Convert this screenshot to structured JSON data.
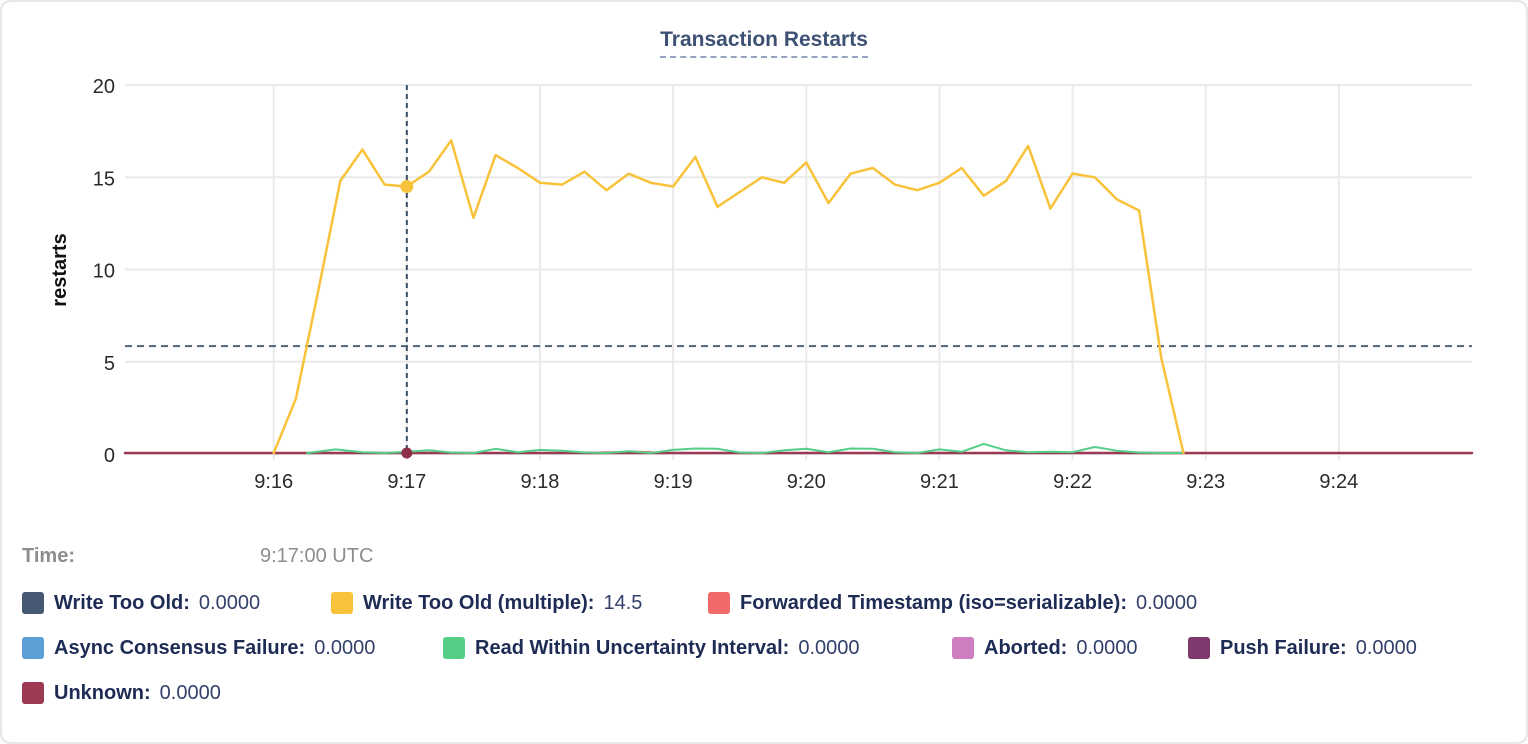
{
  "header": {
    "title": "Transaction Restarts"
  },
  "readout": {
    "label": "Time:",
    "value": "9:17:00 UTC"
  },
  "legend": {
    "rows": [
      [
        {
          "slug": "write-too-old",
          "label": "Write Too Old:",
          "value": "0.0000",
          "color": "#475872"
        },
        {
          "slug": "write-too-old-multiple",
          "label": "Write Too Old (multiple):",
          "value": "14.5",
          "color": "#F8C33A"
        },
        {
          "slug": "forwarded-timestamp",
          "label": "Forwarded Timestamp (iso=serializable):",
          "value": "0.0000",
          "color": "#F16969"
        }
      ],
      [
        {
          "slug": "async-consensus-failure",
          "label": "Async Consensus Failure:",
          "value": "0.0000",
          "color": "#5C9FD6"
        },
        {
          "slug": "read-within-uncertainty-interval",
          "label": "Read Within Uncertainty Interval:",
          "value": "0.0000",
          "color": "#55CE87"
        },
        {
          "slug": "aborted",
          "label": "Aborted:",
          "value": "0.0000",
          "color": "#CE7DC0"
        },
        {
          "slug": "push-failure",
          "label": "Push Failure:",
          "value": "0.0000",
          "color": "#7E396D"
        }
      ],
      [
        {
          "slug": "unknown",
          "label": "Unknown:",
          "value": "0.0000",
          "color": "#9C3A53"
        }
      ]
    ]
  },
  "colors": {
    "gridline": "#EAEAEA",
    "tick_text": "#2B2B2B",
    "axis_title_text": "#111111",
    "crosshair": "#3D5166",
    "crosshair_dot_bottom": "#8D2F48"
  },
  "chart_data": {
    "type": "line",
    "title": "Transaction Restarts",
    "xlabel": "",
    "ylabel": "restarts",
    "ylim": [
      0,
      20
    ],
    "y_ticks": [
      0,
      5,
      10,
      15,
      20
    ],
    "x_ticks": [
      {
        "label": "9:16",
        "t": 960
      },
      {
        "label": "9:17",
        "t": 1020
      },
      {
        "label": "9:18",
        "t": 1080
      },
      {
        "label": "9:19",
        "t": 1140
      },
      {
        "label": "9:20",
        "t": 1200
      },
      {
        "label": "9:21",
        "t": 1260
      },
      {
        "label": "9:22",
        "t": 1320
      },
      {
        "label": "9:23",
        "t": 1380
      },
      {
        "label": "9:24",
        "t": 1440
      }
    ],
    "x_domain_seconds_since_9am": [
      893,
      1500
    ],
    "grid": true,
    "legend_position": "bottom",
    "average_dashed_line_value": 5.85,
    "crosshair": {
      "t": 1020,
      "time_label": "9:17:00 UTC",
      "highlighted_points": [
        {
          "series": "Write Too Old (multiple)",
          "value": 14.5
        },
        {
          "series": "Unknown",
          "value": 0
        }
      ]
    },
    "series": [
      {
        "name": "Write Too Old",
        "color": "#475872",
        "width": 2,
        "points": [
          [
            893,
            0.02
          ],
          [
            1500,
            0.02
          ]
        ]
      },
      {
        "name": "Async Consensus Failure",
        "color": "#5C9FD6",
        "width": 2,
        "points": [
          [
            893,
            0.02
          ],
          [
            1500,
            0.02
          ]
        ]
      },
      {
        "name": "Aborted",
        "color": "#CE7DC0",
        "width": 2,
        "points": [
          [
            893,
            0.02
          ],
          [
            1500,
            0.02
          ]
        ]
      },
      {
        "name": "Push Failure",
        "color": "#7E396D",
        "width": 2,
        "points": [
          [
            893,
            0.02
          ],
          [
            1500,
            0.02
          ]
        ]
      },
      {
        "name": "Forwarded Timestamp (iso=serializable)",
        "color": "#F16969",
        "width": 2,
        "points": [
          [
            893,
            0.02
          ],
          [
            1100,
            0.02
          ],
          [
            1112,
            0.1
          ],
          [
            1122,
            0.13
          ],
          [
            1138,
            0.04
          ],
          [
            1148,
            0.02
          ],
          [
            1500,
            0.02
          ]
        ]
      },
      {
        "name": "Unknown",
        "color": "#9C3A53",
        "width": 2.5,
        "points": [
          [
            893,
            0.03
          ],
          [
            1500,
            0.03
          ]
        ]
      },
      {
        "name": "Read Within Uncertainty Interval",
        "color": "#55CE87",
        "width": 2,
        "points": [
          [
            975,
            0.05
          ],
          [
            988,
            0.25
          ],
          [
            1000,
            0.1
          ],
          [
            1010,
            0.05
          ],
          [
            1020,
            0.12
          ],
          [
            1030,
            0.2
          ],
          [
            1040,
            0.08
          ],
          [
            1050,
            0.05
          ],
          [
            1060,
            0.28
          ],
          [
            1070,
            0.1
          ],
          [
            1080,
            0.22
          ],
          [
            1090,
            0.18
          ],
          [
            1100,
            0.08
          ],
          [
            1110,
            0.05
          ],
          [
            1120,
            0.15
          ],
          [
            1130,
            0.05
          ],
          [
            1140,
            0.22
          ],
          [
            1150,
            0.3
          ],
          [
            1160,
            0.28
          ],
          [
            1170,
            0.08
          ],
          [
            1180,
            0.05
          ],
          [
            1190,
            0.2
          ],
          [
            1200,
            0.28
          ],
          [
            1210,
            0.1
          ],
          [
            1220,
            0.3
          ],
          [
            1230,
            0.28
          ],
          [
            1240,
            0.1
          ],
          [
            1250,
            0.05
          ],
          [
            1260,
            0.25
          ],
          [
            1270,
            0.12
          ],
          [
            1280,
            0.55
          ],
          [
            1290,
            0.2
          ],
          [
            1300,
            0.1
          ],
          [
            1310,
            0.12
          ],
          [
            1320,
            0.1
          ],
          [
            1330,
            0.38
          ],
          [
            1340,
            0.18
          ],
          [
            1350,
            0.08
          ],
          [
            1360,
            0.05
          ],
          [
            1370,
            0.03
          ]
        ]
      },
      {
        "name": "Write Too Old (multiple)",
        "color": "#F8C33A",
        "width": 2.5,
        "points": [
          [
            960,
            0.05
          ],
          [
            970,
            3.0
          ],
          [
            980,
            8.8
          ],
          [
            990,
            14.8
          ],
          [
            1000,
            16.5
          ],
          [
            1010,
            14.6
          ],
          [
            1020,
            14.5
          ],
          [
            1030,
            15.3
          ],
          [
            1040,
            17.0
          ],
          [
            1050,
            12.8
          ],
          [
            1060,
            16.2
          ],
          [
            1070,
            15.5
          ],
          [
            1080,
            14.7
          ],
          [
            1090,
            14.6
          ],
          [
            1100,
            15.3
          ],
          [
            1110,
            14.3
          ],
          [
            1120,
            15.2
          ],
          [
            1130,
            14.7
          ],
          [
            1140,
            14.5
          ],
          [
            1150,
            16.1
          ],
          [
            1160,
            13.4
          ],
          [
            1170,
            14.2
          ],
          [
            1180,
            15.0
          ],
          [
            1190,
            14.7
          ],
          [
            1200,
            15.8
          ],
          [
            1210,
            13.6
          ],
          [
            1220,
            15.2
          ],
          [
            1230,
            15.5
          ],
          [
            1240,
            14.6
          ],
          [
            1250,
            14.3
          ],
          [
            1260,
            14.7
          ],
          [
            1270,
            15.5
          ],
          [
            1280,
            14.0
          ],
          [
            1290,
            14.8
          ],
          [
            1300,
            16.7
          ],
          [
            1310,
            13.3
          ],
          [
            1320,
            15.2
          ],
          [
            1330,
            15.0
          ],
          [
            1340,
            13.8
          ],
          [
            1350,
            13.2
          ],
          [
            1360,
            5.2
          ],
          [
            1370,
            0.05
          ]
        ]
      }
    ]
  }
}
